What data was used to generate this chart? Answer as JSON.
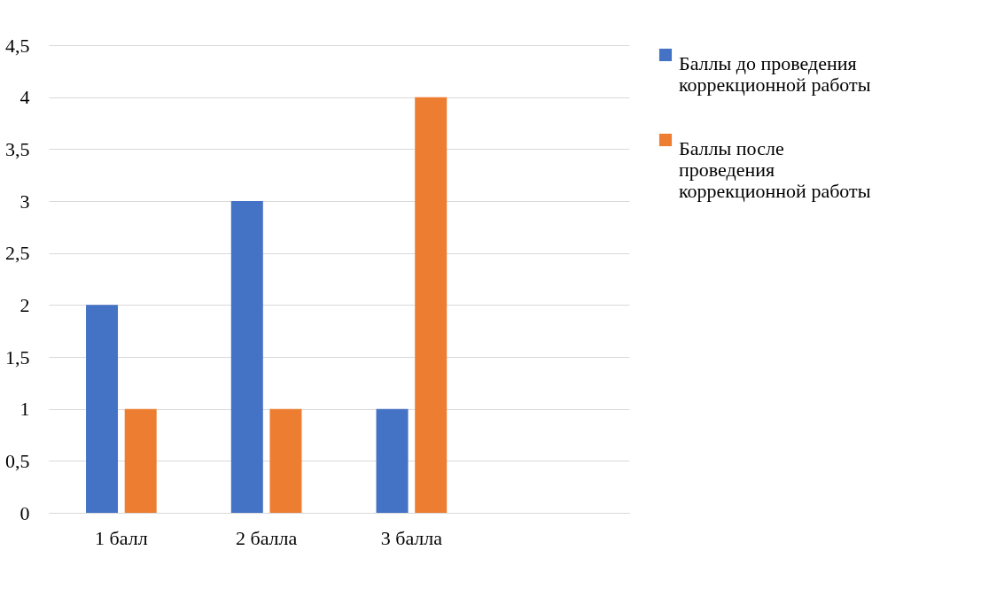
{
  "chart_data": {
    "type": "bar",
    "categories": [
      "1 балл",
      "2 балла",
      "3 балла",
      null
    ],
    "series": [
      {
        "name": "Баллы до проведения коррекционной работы",
        "color": "#4472c4",
        "values": [
          2,
          3,
          1,
          null
        ]
      },
      {
        "name": "Баллы после проведения коррекционной работы",
        "color": "#ed7d31",
        "values": [
          1,
          1,
          4,
          null
        ]
      }
    ],
    "ylim": [
      0,
      4.5
    ],
    "yticks": [
      0,
      {
        "value": 0.5,
        "label": "0,5"
      },
      1,
      {
        "value": 1.5,
        "label": "1,5"
      },
      2,
      {
        "value": 2.5,
        "label": "2,5"
      },
      3,
      {
        "value": 3.5,
        "label": "3,5"
      },
      4,
      {
        "value": 4.5,
        "label": "4,5"
      }
    ],
    "grid": "y",
    "legend": "right"
  }
}
